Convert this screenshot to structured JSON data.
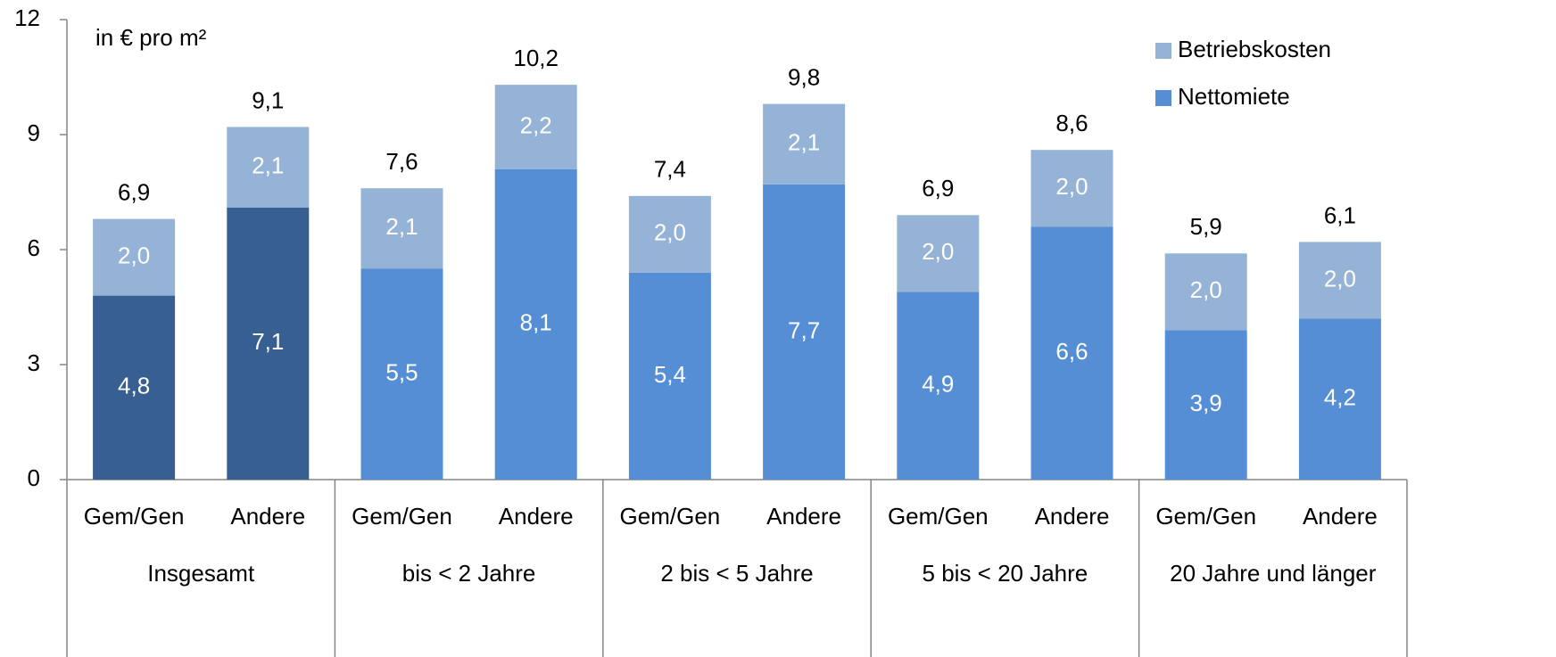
{
  "chart_data": {
    "type": "stacked_bar",
    "annotation": "in € pro m²",
    "categories": [
      "Gem/Gen",
      "Andere",
      "Gem/Gen",
      "Andere",
      "Gem/Gen",
      "Andere",
      "Gem/Gen",
      "Andere",
      "Gem/Gen",
      "Andere"
    ],
    "groups": [
      "Insgesamt",
      "bis <  2 Jahre",
      "2 bis <  5 Jahre",
      "5 bis < 20 Jahre",
      "20 Jahre und länger"
    ],
    "series": [
      {
        "name": "Nettomiete",
        "color": "#558ed5",
        "colors": [
          "#375f91",
          "#375f91",
          "#558ed5",
          "#558ed5",
          "#558ed5",
          "#558ed5",
          "#558ed5",
          "#558ed5",
          "#558ed5",
          "#558ed5"
        ],
        "values": [
          4.8,
          7.1,
          5.5,
          8.1,
          5.4,
          7.7,
          4.9,
          6.6,
          3.9,
          4.2
        ],
        "value_labels": [
          "4,8",
          "7,1",
          "5,5",
          "8,1",
          "5,4",
          "7,7",
          "4,9",
          "6,6",
          "3,9",
          "4,2"
        ]
      },
      {
        "name": "Betriebskosten",
        "color": "#95b3d7",
        "values": [
          2.0,
          2.1,
          2.1,
          2.2,
          2.0,
          2.1,
          2.0,
          2.0,
          2.0,
          2.0
        ],
        "value_labels": [
          "2,0",
          "2,1",
          "2,1",
          "2,2",
          "2,0",
          "2,1",
          "2,0",
          "2,0",
          "2,0",
          "2,0"
        ]
      }
    ],
    "totals": [
      6.9,
      9.1,
      7.6,
      10.2,
      7.4,
      9.8,
      6.9,
      8.6,
      5.9,
      6.1
    ],
    "totals_labels": [
      "6,9",
      "9,1",
      "7,6",
      "10,2",
      "7,4",
      "9,8",
      "6,9",
      "8,6",
      "5,9",
      "6,1"
    ],
    "ylim": [
      0,
      12
    ],
    "yticks": [
      0,
      3,
      6,
      9,
      12
    ],
    "legend": "top-right"
  }
}
